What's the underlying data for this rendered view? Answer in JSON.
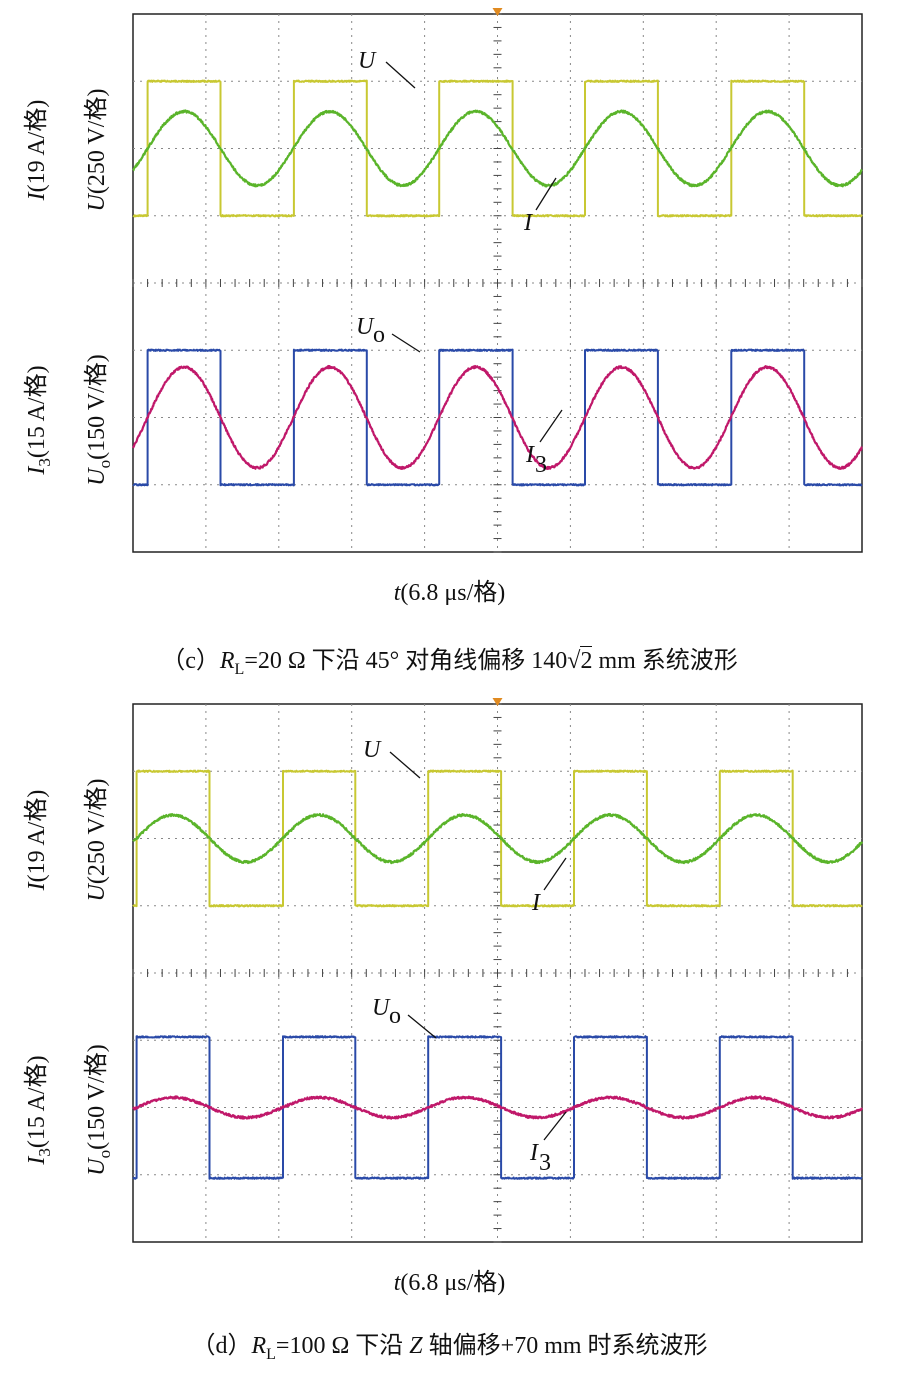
{
  "chart_data": [
    {
      "type": "line",
      "panel": "c",
      "caption_prefix": "（c）",
      "caption_rl_value": "=20 Ω 下沿 45° 对角线偏移 140",
      "caption_sqrt": "2",
      "caption_suffix": " mm 系统波形",
      "xlabel": "(6.8 μs/格)",
      "top_axes": {
        "current_label": "(19 A/格)",
        "voltage_label": "(250 V/格)"
      },
      "bottom_axes": {
        "current_label": "(15 A/格)",
        "voltage_label": "(150 V/格)"
      },
      "series": [
        {
          "name": "U",
          "kind": "square",
          "period_div": 2.0,
          "amplitude_div": 1.0,
          "phase_div": 0.2,
          "color": "#c8c832"
        },
        {
          "name": "I",
          "kind": "sine",
          "period_div": 2.0,
          "amplitude_div": 0.55,
          "phase_div": 0.2,
          "color": "#5ab42a"
        },
        {
          "name": "Uo",
          "kind": "square",
          "period_div": 2.0,
          "amplitude_div": 1.0,
          "phase_div": 0.2,
          "color": "#2a4aa8"
        },
        {
          "name": "I3",
          "kind": "sine",
          "period_div": 2.0,
          "amplitude_div": 0.75,
          "phase_div": 0.2,
          "color": "#c0186a"
        }
      ]
    },
    {
      "type": "line",
      "panel": "d",
      "caption_prefix": "（d）",
      "caption_rl_value": "=100 Ω 下沿 ",
      "caption_axis": "Z",
      "caption_suffix": " 轴偏移+70 mm 时系统波形",
      "xlabel": "(6.8 μs/格)",
      "top_axes": {
        "current_label": "(19 A/格)",
        "voltage_label": "(250 V/格)"
      },
      "bottom_axes": {
        "current_label": "(15 A/格)",
        "voltage_label": "(150 V/格)"
      },
      "series": [
        {
          "name": "U",
          "kind": "square",
          "period_div": 2.0,
          "amplitude_div": 1.0,
          "phase_div": 0.05,
          "color": "#c8c832"
        },
        {
          "name": "I",
          "kind": "sine",
          "period_div": 2.0,
          "amplitude_div": 0.35,
          "phase_div": 0.05,
          "color": "#5ab42a"
        },
        {
          "name": "Uo",
          "kind": "square",
          "period_div": 2.0,
          "amplitude_div": 1.05,
          "phase_div": 0.05,
          "color": "#2a4aa8"
        },
        {
          "name": "I3",
          "kind": "sine",
          "period_div": 2.0,
          "amplitude_div": 0.15,
          "phase_div": 0.05,
          "color": "#c0186a"
        }
      ]
    }
  ]
}
